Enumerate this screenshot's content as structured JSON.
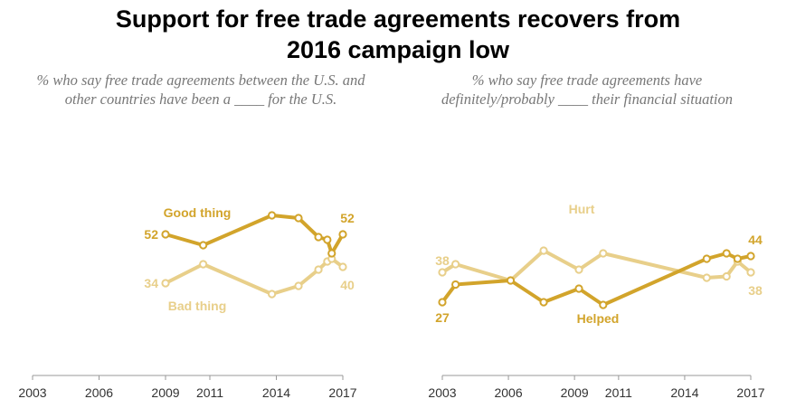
{
  "title_line1": "Support for free trade agreements recovers from",
  "title_line2": "2016 campaign low",
  "colors": {
    "dark": "#d2a42b",
    "light": "#e8cf8a",
    "axis": "#999999"
  },
  "chart_data": [
    {
      "type": "line",
      "subtitle": "% who say free trade agreements between the U.S. and other countries have been a ____ for the U.S.",
      "xlim": [
        2003,
        2017
      ],
      "ylim": [
        0,
        70
      ],
      "xticks": [
        "2003",
        "2006",
        "2009",
        "2011",
        "2014",
        "2017"
      ],
      "xtick_values": [
        2003,
        2006,
        2009,
        2011,
        2014,
        2017
      ],
      "grid": false,
      "series": [
        {
          "name": "Good thing",
          "color": "dark",
          "start_label": "52",
          "end_label": "52",
          "x": [
            2009.0,
            2010.7,
            2013.8,
            2015.0,
            2015.9,
            2016.3,
            2016.5,
            2017.0
          ],
          "y": [
            52,
            48,
            59,
            58,
            51,
            50,
            45,
            52
          ]
        },
        {
          "name": "Bad thing",
          "color": "light",
          "start_label": "34",
          "end_label": "40",
          "x": [
            2009.0,
            2010.7,
            2013.8,
            2015.0,
            2015.9,
            2016.3,
            2016.5,
            2017.0
          ],
          "y": [
            34,
            41,
            30,
            33,
            39,
            42,
            43,
            40
          ]
        }
      ]
    },
    {
      "type": "line",
      "subtitle": "% who say free trade agreements have definitely/probably ____ their financial situation",
      "xlim": [
        2003,
        2017
      ],
      "ylim": [
        0,
        70
      ],
      "xticks": [
        "2003",
        "2006",
        "2009",
        "2011",
        "2014",
        "2017"
      ],
      "xtick_values": [
        2003,
        2006,
        2009,
        2011,
        2014,
        2017
      ],
      "grid": false,
      "series": [
        {
          "name": "Helped",
          "color": "dark",
          "start_label": "27",
          "end_label": "44",
          "x": [
            2003.0,
            2003.6,
            2006.1,
            2007.6,
            2009.2,
            2010.3,
            2015.0,
            2015.9,
            2016.4,
            2017.0
          ],
          "y": [
            27,
            33.5,
            35,
            27,
            32,
            26,
            43,
            45,
            43,
            44
          ]
        },
        {
          "name": "Hurt",
          "color": "light",
          "start_label": "38",
          "end_label": "38",
          "x": [
            2003.0,
            2003.6,
            2006.1,
            2007.6,
            2009.2,
            2010.3,
            2015.0,
            2015.9,
            2016.4,
            2017.0
          ],
          "y": [
            38,
            41,
            35,
            46,
            39,
            45,
            36,
            36.5,
            42,
            38
          ]
        }
      ]
    }
  ]
}
